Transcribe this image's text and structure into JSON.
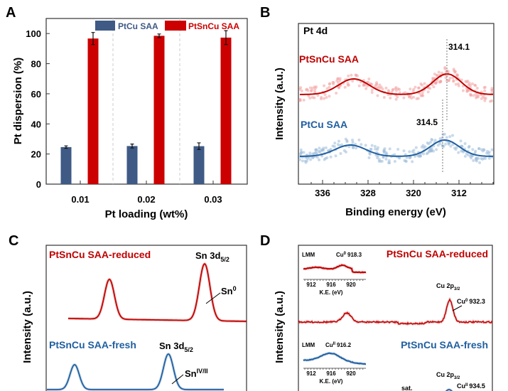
{
  "chart_data": [
    {
      "panel": "A",
      "type": "bar",
      "xlabel": "Pt loading (wt%)",
      "ylabel": "Pt dispersion (%)",
      "categories": [
        "0.01",
        "0.02",
        "0.03"
      ],
      "ylim": [
        0,
        110
      ],
      "yticks": [
        "0",
        "20",
        "40",
        "60",
        "80",
        "100"
      ],
      "legend": "top-right",
      "series": [
        {
          "name": "PtCu SAA",
          "color": "#3e5a85",
          "values": [
            24.6,
            25.3,
            25.2
          ],
          "errors": [
            0.8,
            1.3,
            2.2
          ]
        },
        {
          "name": "PtSnCu SAA",
          "color": "#cc0000",
          "values": [
            96.7,
            98.5,
            97.3
          ],
          "errors": [
            4.0,
            1.2,
            4.6
          ]
        }
      ]
    },
    {
      "panel": "B",
      "type": "scatter",
      "title": "Pt 4d",
      "xlabel": "Binding energy (eV)",
      "ylabel": "Intensity (a.u.)",
      "xlim": [
        340,
        306
      ],
      "xticks": [
        "336",
        "328",
        "320",
        "312"
      ],
      "series": [
        {
          "name": "PtSnCu SAA",
          "color": "#c00000",
          "peaks_eV": [
            330.5,
            314.1
          ]
        },
        {
          "name": "PtCu SAA",
          "color": "#1f5fa0",
          "peaks_eV": [
            331.1,
            314.5
          ]
        }
      ],
      "annotations": [
        "314.1",
        "314.5"
      ]
    },
    {
      "panel": "C",
      "type": "line",
      "ylabel": "Intensity (a.u.)",
      "series": [
        {
          "name": "PtSnCu SAA-reduced",
          "color": "#c00000"
        },
        {
          "name": "PtSnCu SAA-fresh",
          "color": "#1f5fa0"
        }
      ],
      "annotations": {
        "peak_red": "Sn 3d",
        "peak_red_sub": "5/2",
        "species_red": "Sn",
        "species_red_sup": "0",
        "peak_blue": "Sn 3d",
        "peak_blue_sub": "5/2",
        "species_blue": "Sn",
        "species_blue_sup": "IV/II"
      }
    },
    {
      "panel": "D",
      "type": "line",
      "ylabel": "Intensity (a.u.)",
      "series": [
        {
          "name": "PtSnCu SAA-reduced",
          "color": "#c00000"
        },
        {
          "name": "PtSnCu SAA-fresh",
          "color": "#1f5fa0"
        }
      ],
      "insets": [
        {
          "label": "LMM",
          "peak": "Cu",
          "peak_sup": "0",
          "peak_value": "918.3",
          "xticks": [
            "912",
            "916",
            "920"
          ],
          "xlabel": "K.E. (eV)"
        },
        {
          "label": "LMM",
          "peak": "Cu",
          "peak_sup": "II",
          "peak_value": "916.2",
          "xticks": [
            "912",
            "916",
            "920"
          ],
          "xlabel": "K.E. (eV)"
        }
      ],
      "annotations": {
        "cu2p_a": "Cu 2p",
        "cu2p_sub": "3/2",
        "cu0": "Cu",
        "cu0_sup": "0",
        "cu0_val": "932.3",
        "cu2p_b": "Cu 2p",
        "sat": "sat.",
        "cu2": "Cu",
        "cu2_sup": "II",
        "cu2_val": "934.5"
      }
    }
  ],
  "panels": {
    "a": "A",
    "b": "B",
    "c": "C",
    "d": "D"
  }
}
